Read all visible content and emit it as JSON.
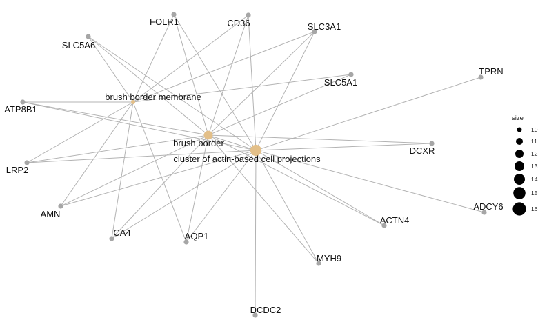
{
  "network": {
    "terms": [
      {
        "id": "brush border membrane",
        "size": 10
      },
      {
        "id": "brush border",
        "size": 14
      },
      {
        "id": "cluster of actin-based cell projections",
        "size": 16
      }
    ],
    "genes": [
      "FOLR1",
      "CD36",
      "SLC3A1",
      "SLC5A6",
      "SLC5A1",
      "TPRN",
      "ATP8B1",
      "DCXR",
      "LRP2",
      "ADCY6",
      "AMN",
      "ACTN4",
      "CA4",
      "AQP1",
      "MYH9",
      "DCDC2"
    ],
    "edges": [
      [
        "brush border membrane",
        "FOLR1"
      ],
      [
        "brush border membrane",
        "CD36"
      ],
      [
        "brush border membrane",
        "SLC3A1"
      ],
      [
        "brush border membrane",
        "SLC5A6"
      ],
      [
        "brush border membrane",
        "SLC5A1"
      ],
      [
        "brush border membrane",
        "ATP8B1"
      ],
      [
        "brush border membrane",
        "LRP2"
      ],
      [
        "brush border membrane",
        "AMN"
      ],
      [
        "brush border membrane",
        "CA4"
      ],
      [
        "brush border membrane",
        "AQP1"
      ],
      [
        "brush border",
        "FOLR1"
      ],
      [
        "brush border",
        "CD36"
      ],
      [
        "brush border",
        "SLC3A1"
      ],
      [
        "brush border",
        "SLC5A6"
      ],
      [
        "brush border",
        "SLC5A1"
      ],
      [
        "brush border",
        "ATP8B1"
      ],
      [
        "brush border",
        "DCXR"
      ],
      [
        "brush border",
        "LRP2"
      ],
      [
        "brush border",
        "AMN"
      ],
      [
        "brush border",
        "ACTN4"
      ],
      [
        "brush border",
        "CA4"
      ],
      [
        "brush border",
        "AQP1"
      ],
      [
        "brush border",
        "MYH9"
      ],
      [
        "brush border",
        "cluster of actin-based cell projections"
      ],
      [
        "cluster of actin-based cell projections",
        "FOLR1"
      ],
      [
        "cluster of actin-based cell projections",
        "CD36"
      ],
      [
        "cluster of actin-based cell projections",
        "SLC3A1"
      ],
      [
        "cluster of actin-based cell projections",
        "SLC5A6"
      ],
      [
        "cluster of actin-based cell projections",
        "TPRN"
      ],
      [
        "cluster of actin-based cell projections",
        "ATP8B1"
      ],
      [
        "cluster of actin-based cell projections",
        "DCXR"
      ],
      [
        "cluster of actin-based cell projections",
        "LRP2"
      ],
      [
        "cluster of actin-based cell projections",
        "ADCY6"
      ],
      [
        "cluster of actin-based cell projections",
        "AMN"
      ],
      [
        "cluster of actin-based cell projections",
        "ACTN4"
      ],
      [
        "cluster of actin-based cell projections",
        "CA4"
      ],
      [
        "cluster of actin-based cell projections",
        "AQP1"
      ],
      [
        "cluster of actin-based cell projections",
        "MYH9"
      ],
      [
        "cluster of actin-based cell projections",
        "DCDC2"
      ]
    ]
  },
  "legend": {
    "title": "size",
    "items": [
      "10",
      "11",
      "12",
      "13",
      "14",
      "15",
      "16"
    ]
  },
  "colors": {
    "term_node": "#e3bf88",
    "gene_node": "#a6a6a6",
    "edge": "#b3b3b3",
    "legend_dot": "#000000"
  }
}
